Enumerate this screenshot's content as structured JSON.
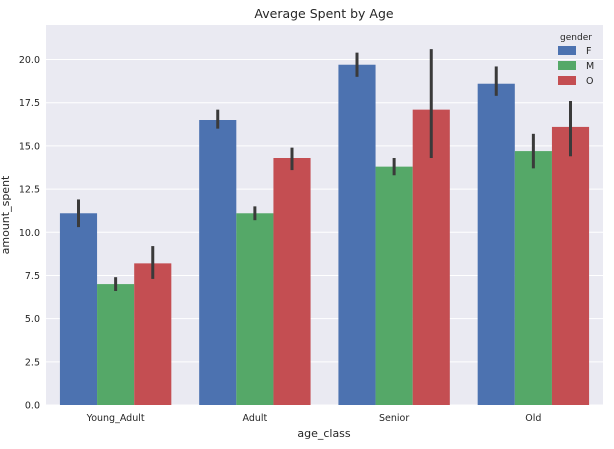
{
  "chart_data": {
    "type": "bar",
    "title": "Average Spent by Age",
    "xlabel": "age_class",
    "ylabel": "amount_spent",
    "categories": [
      "Young_Adult",
      "Adult",
      "Senior",
      "Old"
    ],
    "ylim": [
      0,
      22
    ],
    "yticks": [
      0.0,
      2.5,
      5.0,
      7.5,
      10.0,
      12.5,
      15.0,
      17.5,
      20.0
    ],
    "ytick_labels": [
      "0.0",
      "2.5",
      "5.0",
      "7.5",
      "10.0",
      "12.5",
      "15.0",
      "17.5",
      "20.0"
    ],
    "grid": true,
    "legend": {
      "title": "gender",
      "placement": "top-right"
    },
    "series": [
      {
        "name": "F",
        "color": "#4c72b0",
        "values": [
          11.1,
          16.5,
          19.7,
          18.6
        ],
        "ci_low": [
          10.3,
          16.0,
          19.0,
          17.9
        ],
        "ci_high": [
          11.9,
          17.1,
          20.4,
          19.6
        ]
      },
      {
        "name": "M",
        "color": "#55a868",
        "values": [
          7.0,
          11.1,
          13.8,
          14.7
        ],
        "ci_low": [
          6.6,
          10.7,
          13.3,
          13.7
        ],
        "ci_high": [
          7.4,
          11.5,
          14.3,
          15.7
        ]
      },
      {
        "name": "O",
        "color": "#c44e52",
        "values": [
          8.2,
          14.3,
          17.1,
          16.1
        ],
        "ci_low": [
          7.3,
          13.6,
          14.3,
          14.4
        ],
        "ci_high": [
          9.2,
          14.9,
          20.6,
          17.6
        ]
      }
    ]
  }
}
